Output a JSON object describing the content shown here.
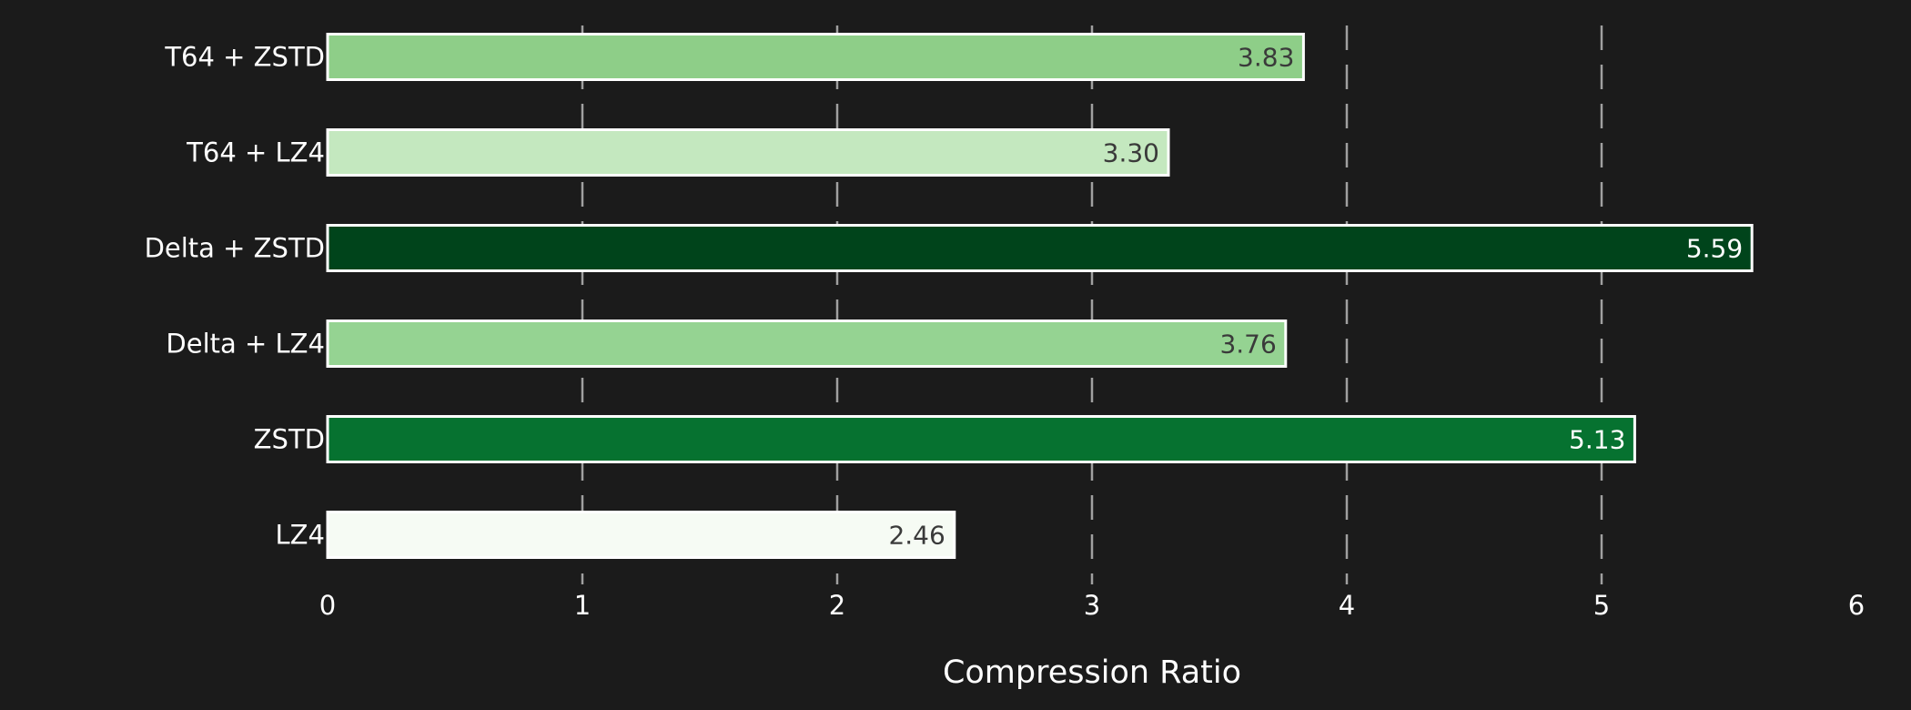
{
  "chart_data": {
    "type": "bar",
    "orientation": "horizontal",
    "title": "",
    "xlabel": "Compression Ratio",
    "ylabel": "",
    "xlim": [
      0,
      6
    ],
    "xticks": [
      "0",
      "1",
      "2",
      "3",
      "4",
      "5",
      "6"
    ],
    "grid": "vertical dashed",
    "legend": "none",
    "categories": [
      "LZ4",
      "ZSTD",
      "Delta + LZ4",
      "Delta + ZSTD",
      "T64 + LZ4",
      "T64 + ZSTD"
    ],
    "values": [
      2.46,
      5.13,
      3.76,
      5.59,
      3.3,
      3.83
    ],
    "value_labels": [
      "2.46",
      "5.13",
      "3.76",
      "5.59",
      "3.30",
      "3.83"
    ],
    "colors": [
      "#f6fbf4",
      "#067230",
      "#95d392",
      "#00441b",
      "#c4e8bf",
      "#8ece88"
    ],
    "label_colors": [
      "#3a3a3a",
      "#ffffff",
      "#3a3a3a",
      "#ffffff",
      "#3a3a3a",
      "#3a3a3a"
    ],
    "background": "#1b1b1b",
    "bar_edge_color": "#ffffff",
    "grid_color": "#a0a0a0"
  }
}
